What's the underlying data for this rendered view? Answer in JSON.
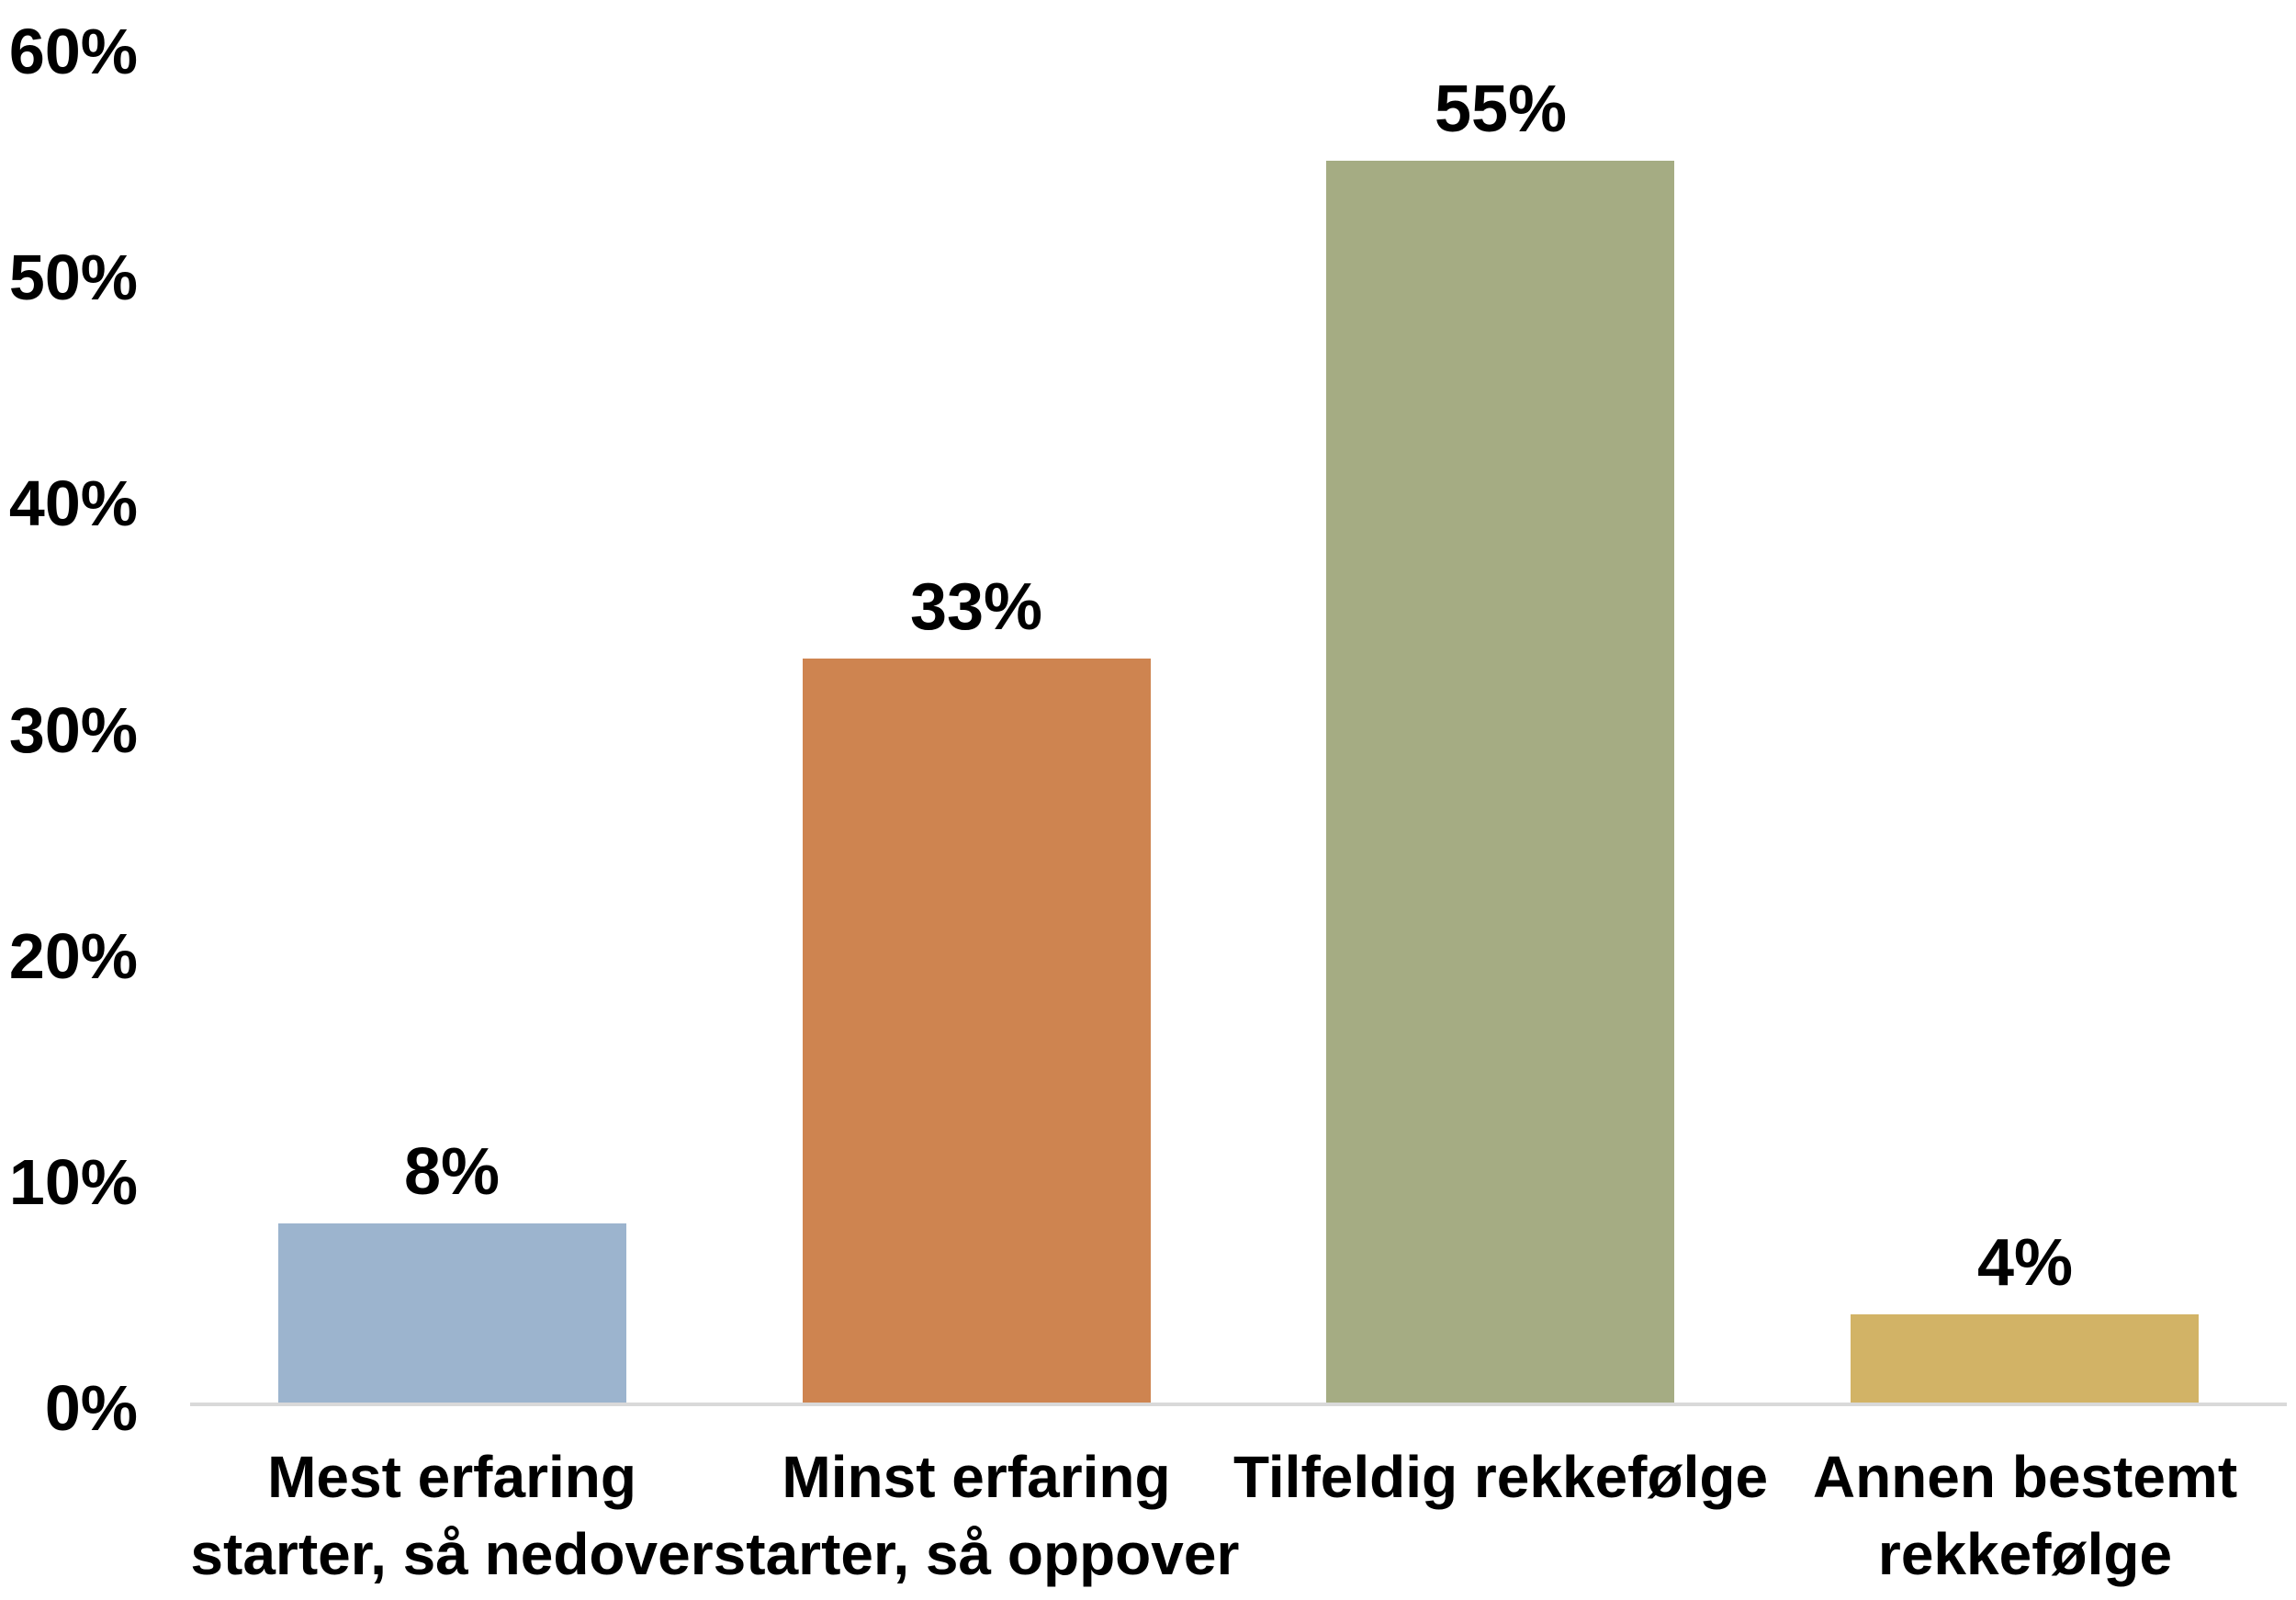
{
  "chart_data": {
    "type": "bar",
    "title": "",
    "xlabel": "",
    "ylabel": "",
    "categories": [
      "Mest erfaring\nstarter, så nedover",
      "Minst erfaring\nstarter, så oppover",
      "Tilfeldig rekkefølge",
      "Annen bestemt\nrekkefølge"
    ],
    "values": [
      8,
      33,
      55,
      4
    ],
    "data_labels": [
      "8%",
      "33%",
      "55%",
      "4%"
    ],
    "bar_colors": [
      "#9CB4CE",
      "#CE8450",
      "#A5AC83",
      "#D2B366"
    ],
    "ylim": [
      0,
      60
    ],
    "yticks": [
      0,
      10,
      20,
      30,
      40,
      50,
      60
    ],
    "ytick_labels": [
      "0%",
      "10%",
      "20%",
      "30%",
      "40%",
      "50%",
      "60%"
    ],
    "grid": false,
    "legend_position": "none",
    "axis_line_color": "#D9D9D9",
    "text_color": "#000000",
    "background_color": "#FFFFFF"
  }
}
